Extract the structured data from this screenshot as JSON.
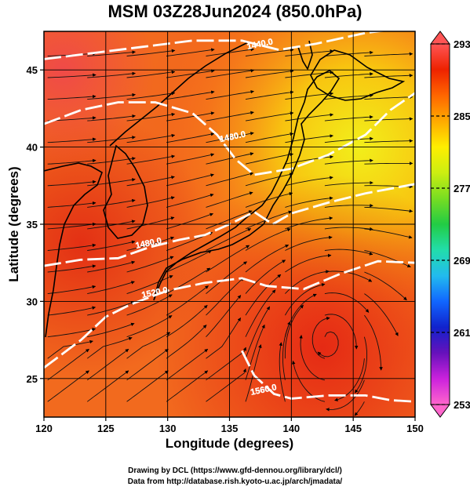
{
  "title": "MSM 03Z28Jun2024 (850.0hPa)",
  "xlabel": "Longitude (degrees)",
  "ylabel": "Latitude  (degrees)",
  "credits": [
    "Drawing by DCL (https://www.gfd-dennou.org/library/dcl/)",
    "Data from http://database.rish.kyoto-u.ac.jp/arch/jmadata/"
  ],
  "chart_data": {
    "type": "heatmap",
    "title": "MSM 03Z28Jun2024 (850.0hPa)",
    "xlabel": "Longitude (degrees)",
    "ylabel": "Latitude  (degrees)",
    "xlim": [
      120,
      150
    ],
    "ylim": [
      22.5,
      47.5
    ],
    "xticks": [
      120,
      125,
      130,
      135,
      140,
      145,
      150
    ],
    "yticks": [
      25,
      30,
      35,
      40,
      45
    ],
    "grid": true,
    "colorbar": {
      "range": [
        253,
        293
      ],
      "ticks": [
        253,
        261,
        269,
        277,
        285,
        293
      ],
      "colors": [
        "#ff66cc",
        "#cc22dd",
        "#6611bb",
        "#1122cc",
        "#1166ff",
        "#22bbee",
        "#22ddaa",
        "#22cc44",
        "#77dd22",
        "#ccee11",
        "#ffee00",
        "#ffaa00",
        "#ff6600",
        "#ee2200",
        "#ff5555"
      ]
    },
    "contour_labels": [
      {
        "text": "1440.0",
        "lon": 137.5,
        "lat": 46.5
      },
      {
        "text": "1480.0",
        "lon": 135.3,
        "lat": 40.5
      },
      {
        "text": "1480.0",
        "lon": 128.5,
        "lat": 33.6
      },
      {
        "text": "1520.0",
        "lon": 129.0,
        "lat": 30.4
      },
      {
        "text": "1560.0",
        "lon": 137.8,
        "lat": 24.1
      }
    ],
    "contours": [
      {
        "level": 1440,
        "points": [
          [
            120,
            45.7
          ],
          [
            124,
            46.1
          ],
          [
            128,
            46.5
          ],
          [
            132,
            46.9
          ],
          [
            136,
            46.9
          ],
          [
            139,
            46.3
          ],
          [
            142,
            46.7
          ],
          [
            146,
            47.4
          ],
          [
            148,
            47.6
          ]
        ]
      },
      {
        "level": 1480,
        "points": [
          [
            120,
            41.5
          ],
          [
            123,
            42.4
          ],
          [
            126,
            42.9
          ],
          [
            129,
            42.9
          ],
          [
            132,
            42.2
          ],
          [
            134,
            40.8
          ],
          [
            135.5,
            39.2
          ],
          [
            137,
            38.2
          ],
          [
            140,
            38.6
          ],
          [
            143,
            39.5
          ],
          [
            146,
            40.8
          ],
          [
            148,
            42.4
          ],
          [
            150,
            43.5
          ]
        ]
      },
      {
        "level": 1480,
        "points": [
          [
            120,
            32.3
          ],
          [
            123,
            32.7
          ],
          [
            126,
            32.8
          ],
          [
            128.5,
            33.5
          ],
          [
            131,
            34.0
          ],
          [
            133,
            34.3
          ],
          [
            135,
            35.0
          ],
          [
            137,
            35.8
          ],
          [
            138.5,
            35.0
          ],
          [
            140,
            35.7
          ],
          [
            143,
            36.4
          ],
          [
            146,
            37.0
          ],
          [
            150,
            37.6
          ]
        ]
      },
      {
        "level": 1520,
        "points": [
          [
            120,
            25.7
          ],
          [
            123,
            27.5
          ],
          [
            125,
            29.0
          ],
          [
            127,
            29.8
          ],
          [
            130,
            30.7
          ],
          [
            133,
            31.2
          ],
          [
            136,
            31.5
          ],
          [
            138,
            31.0
          ],
          [
            141,
            30.8
          ],
          [
            144,
            31.8
          ],
          [
            147,
            32.6
          ],
          [
            150,
            32.5
          ]
        ]
      },
      {
        "level": 1560,
        "points": [
          [
            136,
            26.8
          ],
          [
            137,
            25.2
          ],
          [
            138.6,
            24.0
          ],
          [
            140,
            23.7
          ],
          [
            143,
            23.9
          ],
          [
            146,
            23.9
          ],
          [
            148,
            23.6
          ],
          [
            150,
            23.5
          ]
        ]
      }
    ]
  }
}
